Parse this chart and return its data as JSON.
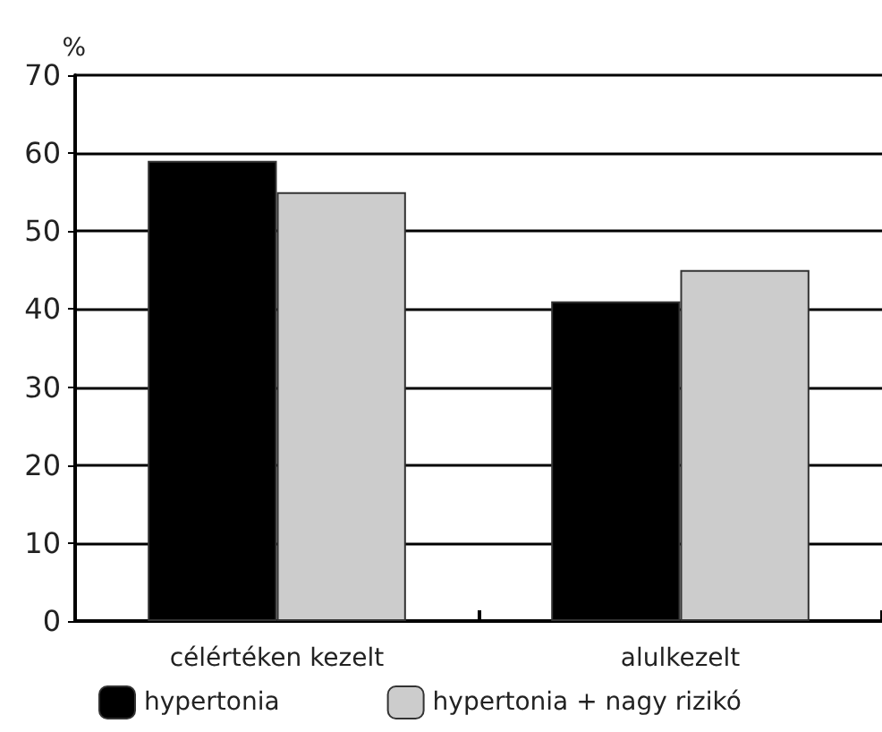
{
  "chart_data": {
    "type": "bar",
    "ylabel": "%",
    "categories": [
      "célértéken kezelt",
      "alulkezelt"
    ],
    "series": [
      {
        "name": "hypertonia",
        "color": "#000000",
        "values": [
          59,
          41
        ]
      },
      {
        "name": "hypertonia + nagy rizikó",
        "color": "#cccccc",
        "values": [
          55,
          45
        ]
      }
    ],
    "ylim": [
      0,
      70
    ],
    "yticks": [
      0,
      10,
      20,
      30,
      40,
      50,
      60,
      70
    ],
    "grid": "y",
    "legend": "bottom"
  }
}
